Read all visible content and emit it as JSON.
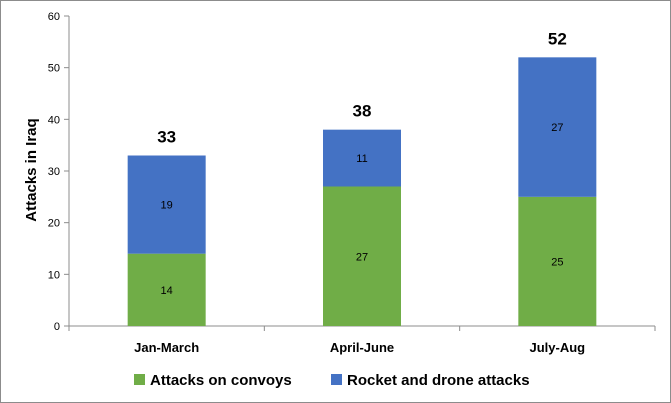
{
  "chart_data": {
    "type": "bar",
    "stacked": true,
    "title": "",
    "xlabel": "",
    "ylabel": "Attacks in Iraq",
    "ylim": [
      0,
      60
    ],
    "yticks": [
      0,
      10,
      20,
      30,
      40,
      50,
      60
    ],
    "categories": [
      "Jan-March",
      "April-June",
      "July-Aug"
    ],
    "series": [
      {
        "name": "Attacks on convoys",
        "values": [
          14,
          27,
          25
        ],
        "color": "#70ad47"
      },
      {
        "name": "Rocket and drone attacks",
        "values": [
          19,
          11,
          27
        ],
        "color": "#4472c4"
      }
    ],
    "totals": [
      33,
      38,
      52
    ],
    "grid": false,
    "legend_position": "bottom"
  }
}
